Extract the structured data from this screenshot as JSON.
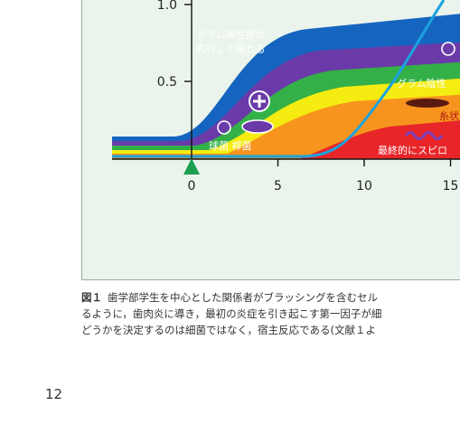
{
  "chart_data": {
    "type": "area",
    "xlabel": "",
    "ylabel": "",
    "x_ticks": [
      "0",
      "5",
      "10",
      "15"
    ],
    "y_ticks": [
      "1.0",
      "0.5"
    ],
    "xlim": [
      -5,
      16
    ],
    "ylim": [
      -0.1,
      1.05
    ],
    "labels": {
      "gram_positive": "グラム陽性菌が\n先行して現れる",
      "gram_negative": "グラム陰性",
      "filamentous": "糸状",
      "cocci_rods": "球菌 桿菌",
      "spirochete": "最終的にスピロ"
    },
    "colors": {
      "blue": "#1565c0",
      "purple": "#6a3aa8",
      "green": "#34b048",
      "yellow": "#f5ec12",
      "orange": "#f7941d",
      "red": "#e8262a",
      "curve": "#1aa3e0",
      "marker": "#1aa050"
    }
  },
  "caption": {
    "fig_label": "図１",
    "lines": [
      "歯学部学生を中心とした関係者がブラッシングを含むセル",
      "るように，歯肉炎に導き，最初の炎症を引き起こす第一因子が細",
      "どうかを決定するのは細菌ではなく，宿主反応である(文献１よ"
    ]
  },
  "page_number": "12"
}
